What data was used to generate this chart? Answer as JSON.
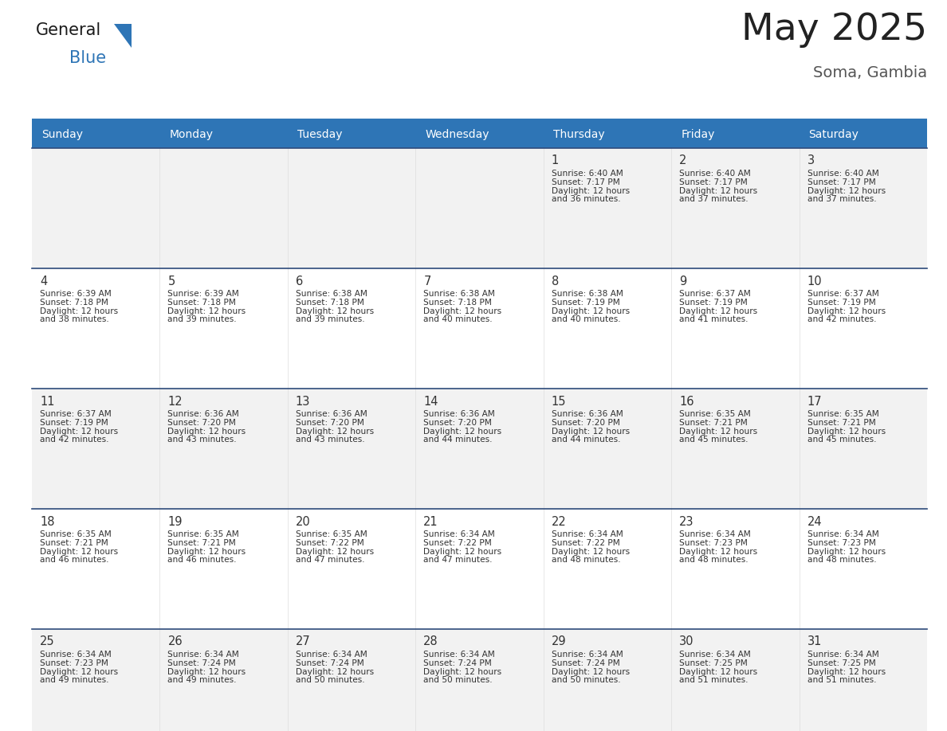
{
  "title": "May 2025",
  "subtitle": "Soma, Gambia",
  "days_of_week": [
    "Sunday",
    "Monday",
    "Tuesday",
    "Wednesday",
    "Thursday",
    "Friday",
    "Saturday"
  ],
  "header_bg": "#2E75B6",
  "header_text": "#FFFFFF",
  "cell_bg_light": "#F2F2F2",
  "cell_bg_white": "#FFFFFF",
  "row_sep_color": "#2E4A7A",
  "col_sep_color": "#FFFFFF",
  "day_number_color": "#333333",
  "cell_text_color": "#333333",
  "title_color": "#222222",
  "subtitle_color": "#555555",
  "background_color": "#FFFFFF",
  "logo_text_color": "#1a1a1a",
  "logo_blue_color": "#2E75B6",
  "logo_triangle_color": "#2E75B6",
  "calendar": [
    [
      null,
      null,
      null,
      null,
      {
        "day": 1,
        "sunrise": "6:40 AM",
        "sunset": "7:17 PM",
        "daylight": "12 hours and 36 minutes."
      },
      {
        "day": 2,
        "sunrise": "6:40 AM",
        "sunset": "7:17 PM",
        "daylight": "12 hours and 37 minutes."
      },
      {
        "day": 3,
        "sunrise": "6:40 AM",
        "sunset": "7:17 PM",
        "daylight": "12 hours and 37 minutes."
      }
    ],
    [
      {
        "day": 4,
        "sunrise": "6:39 AM",
        "sunset": "7:18 PM",
        "daylight": "12 hours and 38 minutes."
      },
      {
        "day": 5,
        "sunrise": "6:39 AM",
        "sunset": "7:18 PM",
        "daylight": "12 hours and 39 minutes."
      },
      {
        "day": 6,
        "sunrise": "6:38 AM",
        "sunset": "7:18 PM",
        "daylight": "12 hours and 39 minutes."
      },
      {
        "day": 7,
        "sunrise": "6:38 AM",
        "sunset": "7:18 PM",
        "daylight": "12 hours and 40 minutes."
      },
      {
        "day": 8,
        "sunrise": "6:38 AM",
        "sunset": "7:19 PM",
        "daylight": "12 hours and 40 minutes."
      },
      {
        "day": 9,
        "sunrise": "6:37 AM",
        "sunset": "7:19 PM",
        "daylight": "12 hours and 41 minutes."
      },
      {
        "day": 10,
        "sunrise": "6:37 AM",
        "sunset": "7:19 PM",
        "daylight": "12 hours and 42 minutes."
      }
    ],
    [
      {
        "day": 11,
        "sunrise": "6:37 AM",
        "sunset": "7:19 PM",
        "daylight": "12 hours and 42 minutes."
      },
      {
        "day": 12,
        "sunrise": "6:36 AM",
        "sunset": "7:20 PM",
        "daylight": "12 hours and 43 minutes."
      },
      {
        "day": 13,
        "sunrise": "6:36 AM",
        "sunset": "7:20 PM",
        "daylight": "12 hours and 43 minutes."
      },
      {
        "day": 14,
        "sunrise": "6:36 AM",
        "sunset": "7:20 PM",
        "daylight": "12 hours and 44 minutes."
      },
      {
        "day": 15,
        "sunrise": "6:36 AM",
        "sunset": "7:20 PM",
        "daylight": "12 hours and 44 minutes."
      },
      {
        "day": 16,
        "sunrise": "6:35 AM",
        "sunset": "7:21 PM",
        "daylight": "12 hours and 45 minutes."
      },
      {
        "day": 17,
        "sunrise": "6:35 AM",
        "sunset": "7:21 PM",
        "daylight": "12 hours and 45 minutes."
      }
    ],
    [
      {
        "day": 18,
        "sunrise": "6:35 AM",
        "sunset": "7:21 PM",
        "daylight": "12 hours and 46 minutes."
      },
      {
        "day": 19,
        "sunrise": "6:35 AM",
        "sunset": "7:21 PM",
        "daylight": "12 hours and 46 minutes."
      },
      {
        "day": 20,
        "sunrise": "6:35 AM",
        "sunset": "7:22 PM",
        "daylight": "12 hours and 47 minutes."
      },
      {
        "day": 21,
        "sunrise": "6:34 AM",
        "sunset": "7:22 PM",
        "daylight": "12 hours and 47 minutes."
      },
      {
        "day": 22,
        "sunrise": "6:34 AM",
        "sunset": "7:22 PM",
        "daylight": "12 hours and 48 minutes."
      },
      {
        "day": 23,
        "sunrise": "6:34 AM",
        "sunset": "7:23 PM",
        "daylight": "12 hours and 48 minutes."
      },
      {
        "day": 24,
        "sunrise": "6:34 AM",
        "sunset": "7:23 PM",
        "daylight": "12 hours and 48 minutes."
      }
    ],
    [
      {
        "day": 25,
        "sunrise": "6:34 AM",
        "sunset": "7:23 PM",
        "daylight": "12 hours and 49 minutes."
      },
      {
        "day": 26,
        "sunrise": "6:34 AM",
        "sunset": "7:24 PM",
        "daylight": "12 hours and 49 minutes."
      },
      {
        "day": 27,
        "sunrise": "6:34 AM",
        "sunset": "7:24 PM",
        "daylight": "12 hours and 50 minutes."
      },
      {
        "day": 28,
        "sunrise": "6:34 AM",
        "sunset": "7:24 PM",
        "daylight": "12 hours and 50 minutes."
      },
      {
        "day": 29,
        "sunrise": "6:34 AM",
        "sunset": "7:24 PM",
        "daylight": "12 hours and 50 minutes."
      },
      {
        "day": 30,
        "sunrise": "6:34 AM",
        "sunset": "7:25 PM",
        "daylight": "12 hours and 51 minutes."
      },
      {
        "day": 31,
        "sunrise": "6:34 AM",
        "sunset": "7:25 PM",
        "daylight": "12 hours and 51 minutes."
      }
    ]
  ]
}
